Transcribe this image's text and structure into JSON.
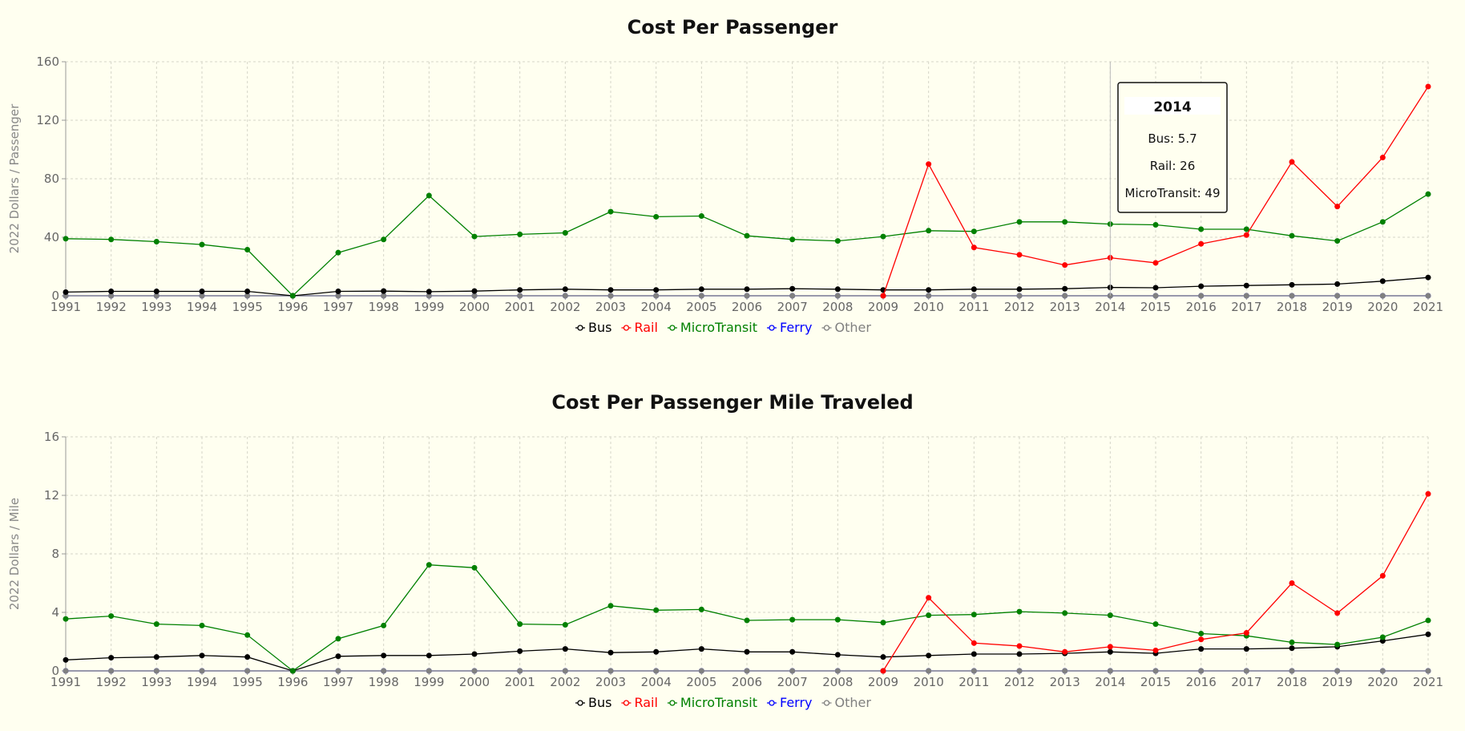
{
  "chart_data": [
    {
      "type": "line",
      "title": "Cost Per Passenger",
      "ylabel": "2022 Dollars / Passenger",
      "ylim": [
        0,
        160
      ],
      "yticks": [
        0,
        40,
        80,
        120,
        160
      ],
      "grid": true,
      "legend_position": "bottom",
      "x": [
        "1991",
        "1992",
        "1993",
        "1994",
        "1995",
        "1996",
        "1997",
        "1998",
        "1999",
        "2000",
        "2001",
        "2002",
        "2003",
        "2004",
        "2005",
        "2006",
        "2007",
        "2008",
        "2009",
        "2010",
        "2011",
        "2012",
        "2013",
        "2014",
        "2015",
        "2016",
        "2017",
        "2018",
        "2019",
        "2020",
        "2021"
      ],
      "series": [
        {
          "name": "Bus",
          "color": "#000000",
          "values": [
            2.5,
            3,
            3,
            3,
            3,
            0,
            3,
            3.2,
            2.8,
            3.2,
            4,
            4.5,
            4,
            4,
            4.5,
            4.5,
            4.8,
            4.5,
            4,
            4,
            4.5,
            4.5,
            4.8,
            5.7,
            5.5,
            6.5,
            7,
            7.5,
            8,
            10,
            12.5
          ]
        },
        {
          "name": "Rail",
          "color": "#ff0000",
          "values": [
            null,
            null,
            null,
            null,
            null,
            null,
            null,
            null,
            null,
            null,
            null,
            null,
            null,
            null,
            null,
            null,
            null,
            null,
            0,
            90,
            33,
            28,
            21,
            26,
            22.5,
            35.5,
            41.5,
            91.5,
            61,
            94.5,
            143
          ]
        },
        {
          "name": "MicroTransit",
          "color": "#008000",
          "values": [
            39,
            38.5,
            37,
            35,
            31.5,
            0,
            29.5,
            38.5,
            68.5,
            40.5,
            42,
            43,
            57.5,
            54,
            54.5,
            41,
            38.5,
            37.5,
            40.5,
            44.5,
            44,
            50.5,
            50.5,
            49,
            48.5,
            45.5,
            45.5,
            41,
            37.5,
            50.5,
            69.5
          ]
        },
        {
          "name": "Ferry",
          "color": "#0000ff",
          "values": [
            0,
            0,
            0,
            0,
            0,
            0,
            0,
            0,
            0,
            0,
            0,
            0,
            0,
            0,
            0,
            0,
            0,
            0,
            0,
            0,
            0,
            0,
            0,
            0,
            0,
            0,
            0,
            0,
            0,
            0,
            0
          ]
        },
        {
          "name": "Other",
          "color": "#808080",
          "values": [
            0,
            0,
            0,
            0,
            0,
            0,
            0,
            0,
            0,
            0,
            0,
            0,
            0,
            0,
            0,
            0,
            0,
            0,
            0,
            0,
            0,
            0,
            0,
            0,
            0,
            0,
            0,
            0,
            0,
            0,
            0
          ]
        }
      ],
      "tooltip": {
        "title": "2014",
        "lines": [
          "Bus: 5.7",
          "Rail: 26",
          "MicroTransit: 49"
        ]
      }
    },
    {
      "type": "line",
      "title": "Cost Per Passenger Mile Traveled",
      "ylabel": "2022 Dollars / Mile",
      "ylim": [
        0,
        16
      ],
      "yticks": [
        0,
        4,
        8,
        12,
        16
      ],
      "grid": true,
      "legend_position": "bottom",
      "x": [
        "1991",
        "1992",
        "1993",
        "1994",
        "1995",
        "1996",
        "1997",
        "1998",
        "1999",
        "2000",
        "2001",
        "2002",
        "2003",
        "2004",
        "2005",
        "2006",
        "2007",
        "2008",
        "2009",
        "2010",
        "2011",
        "2012",
        "2013",
        "2014",
        "2015",
        "2016",
        "2017",
        "2018",
        "2019",
        "2020",
        "2021"
      ],
      "series": [
        {
          "name": "Bus",
          "color": "#000000",
          "values": [
            0.75,
            0.9,
            0.95,
            1.05,
            0.95,
            0,
            1,
            1.05,
            1.05,
            1.15,
            1.35,
            1.5,
            1.25,
            1.3,
            1.5,
            1.3,
            1.3,
            1.1,
            0.95,
            1.05,
            1.15,
            1.15,
            1.2,
            1.3,
            1.2,
            1.5,
            1.5,
            1.55,
            1.65,
            2.05,
            2.5
          ]
        },
        {
          "name": "Rail",
          "color": "#ff0000",
          "values": [
            null,
            null,
            null,
            null,
            null,
            null,
            null,
            null,
            null,
            null,
            null,
            null,
            null,
            null,
            null,
            null,
            null,
            null,
            0,
            5,
            1.9,
            1.7,
            1.3,
            1.65,
            1.4,
            2.15,
            2.6,
            6,
            3.95,
            6.5,
            12.1
          ]
        },
        {
          "name": "MicroTransit",
          "color": "#008000",
          "values": [
            3.55,
            3.75,
            3.2,
            3.1,
            2.45,
            0,
            2.2,
            3.1,
            7.25,
            7.05,
            3.2,
            3.15,
            4.45,
            4.15,
            4.2,
            3.45,
            3.5,
            3.5,
            3.3,
            3.8,
            3.85,
            4.05,
            3.95,
            3.8,
            3.2,
            2.55,
            2.4,
            1.95,
            1.8,
            2.3,
            3.45
          ]
        },
        {
          "name": "Ferry",
          "color": "#0000ff",
          "values": [
            0,
            0,
            0,
            0,
            0,
            0,
            0,
            0,
            0,
            0,
            0,
            0,
            0,
            0,
            0,
            0,
            0,
            0,
            0,
            0,
            0,
            0,
            0,
            0,
            0,
            0,
            0,
            0,
            0,
            0,
            0
          ]
        },
        {
          "name": "Other",
          "color": "#808080",
          "values": [
            0,
            0,
            0,
            0,
            0,
            0,
            0,
            0,
            0,
            0,
            0,
            0,
            0,
            0,
            0,
            0,
            0,
            0,
            0,
            0,
            0,
            0,
            0,
            0,
            0,
            0,
            0,
            0,
            0,
            0,
            0
          ]
        }
      ]
    }
  ]
}
